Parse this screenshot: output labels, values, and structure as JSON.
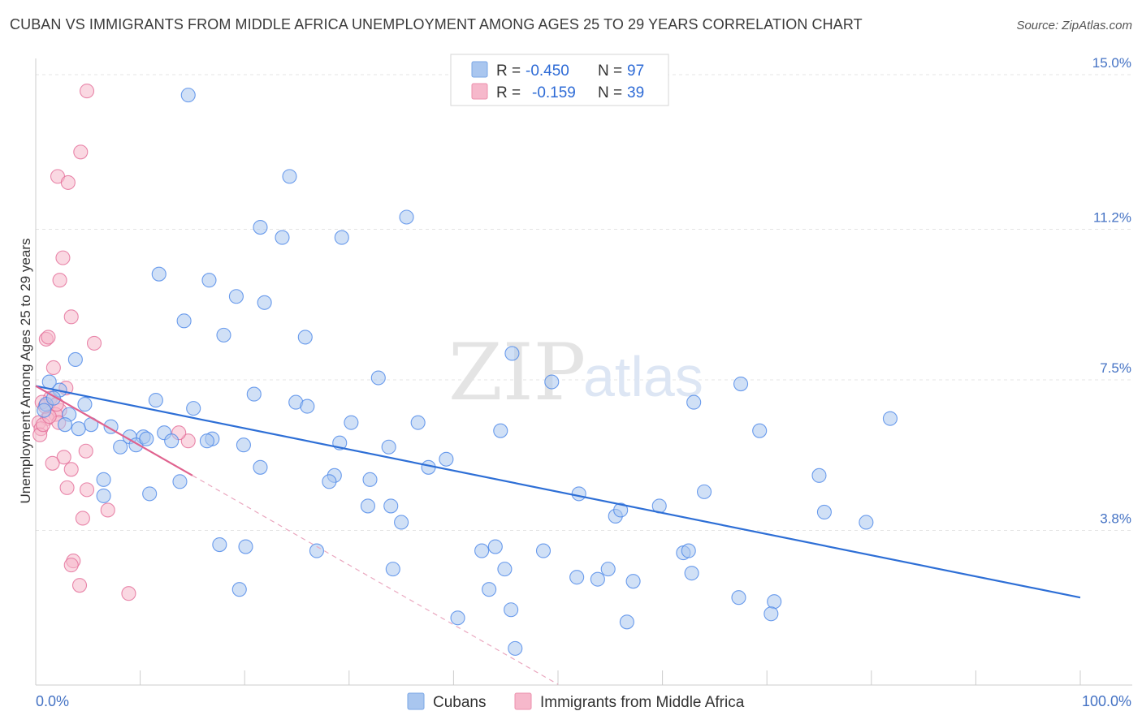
{
  "title": "CUBAN VS IMMIGRANTS FROM MIDDLE AFRICA UNEMPLOYMENT AMONG AGES 25 TO 29 YEARS CORRELATION CHART",
  "source": "Source: ZipAtlas.com",
  "watermark": {
    "zip": "ZIP",
    "atlas": "atlas"
  },
  "legend": {
    "r_label": "R =",
    "n_label": "N =",
    "rows": [
      {
        "r": "-0.450",
        "n": "97",
        "color": "#a9c6ef"
      },
      {
        "r": "-0.159",
        "n": "39",
        "color": "#f6b8cb"
      }
    ]
  },
  "bottom_legend": [
    "Cubans",
    "Immigrants from Middle Africa"
  ],
  "chart_data": {
    "type": "scatter",
    "title": "CUBAN VS IMMIGRANTS FROM MIDDLE AFRICA UNEMPLOYMENT AMONG AGES 25 TO 29 YEARS CORRELATION CHART",
    "xlabel": "",
    "ylabel": "Unemployment Among Ages 25 to 29 years",
    "xlim": [
      0,
      100
    ],
    "ylim": [
      0,
      15.4
    ],
    "x_tick_labels": [
      "0.0%",
      "100.0%"
    ],
    "y_ticks": [
      3.8,
      7.5,
      11.2,
      15.0
    ],
    "y_tick_labels": [
      "3.8%",
      "7.5%",
      "11.2%",
      "15.0%"
    ],
    "grid": true,
    "legend_position": "top-center",
    "series": [
      {
        "name": "Cubans",
        "color": "#4a86e8",
        "fill": "#a9c6ef",
        "r": -0.45,
        "n": 97,
        "trend": {
          "x0": 0,
          "y0": 7.35,
          "x1": 100,
          "y1": 2.15
        },
        "points": [
          [
            14.6,
            14.5
          ],
          [
            24.3,
            12.5
          ],
          [
            21.5,
            11.25
          ],
          [
            35.5,
            11.5
          ],
          [
            23.6,
            11.0
          ],
          [
            29.3,
            11.0
          ],
          [
            11.8,
            10.1
          ],
          [
            16.6,
            9.95
          ],
          [
            19.2,
            9.55
          ],
          [
            21.9,
            9.4
          ],
          [
            14.2,
            8.95
          ],
          [
            18.0,
            8.6
          ],
          [
            25.8,
            8.55
          ],
          [
            3.8,
            8.0
          ],
          [
            45.6,
            8.15
          ],
          [
            1.3,
            7.45
          ],
          [
            2.3,
            7.25
          ],
          [
            32.8,
            7.55
          ],
          [
            49.4,
            7.45
          ],
          [
            67.5,
            7.4
          ],
          [
            20.9,
            7.15
          ],
          [
            11.5,
            7.0
          ],
          [
            24.9,
            6.95
          ],
          [
            4.7,
            6.9
          ],
          [
            63.0,
            6.95
          ],
          [
            26.0,
            6.85
          ],
          [
            15.1,
            6.8
          ],
          [
            3.2,
            6.65
          ],
          [
            1.0,
            6.9
          ],
          [
            30.2,
            6.45
          ],
          [
            36.6,
            6.45
          ],
          [
            81.8,
            6.55
          ],
          [
            2.8,
            6.4
          ],
          [
            5.3,
            6.4
          ],
          [
            7.2,
            6.35
          ],
          [
            12.3,
            6.2
          ],
          [
            44.5,
            6.25
          ],
          [
            69.3,
            6.25
          ],
          [
            9.0,
            6.1
          ],
          [
            10.3,
            6.1
          ],
          [
            9.6,
            5.9
          ],
          [
            8.1,
            5.85
          ],
          [
            10.6,
            6.05
          ],
          [
            13.0,
            6.0
          ],
          [
            16.9,
            6.05
          ],
          [
            29.1,
            5.95
          ],
          [
            33.8,
            5.85
          ],
          [
            37.6,
            5.35
          ],
          [
            21.5,
            5.35
          ],
          [
            28.6,
            5.15
          ],
          [
            32.0,
            5.05
          ],
          [
            28.1,
            5.0
          ],
          [
            6.5,
            5.05
          ],
          [
            13.8,
            5.0
          ],
          [
            52.0,
            4.7
          ],
          [
            64.0,
            4.75
          ],
          [
            31.8,
            4.4
          ],
          [
            34.0,
            4.4
          ],
          [
            59.7,
            4.4
          ],
          [
            75.5,
            4.25
          ],
          [
            55.5,
            4.15
          ],
          [
            35.0,
            4.0
          ],
          [
            79.5,
            4.0
          ],
          [
            17.6,
            3.45
          ],
          [
            20.1,
            3.4
          ],
          [
            44.0,
            3.4
          ],
          [
            26.9,
            3.3
          ],
          [
            42.7,
            3.3
          ],
          [
            48.6,
            3.3
          ],
          [
            62.0,
            3.25
          ],
          [
            62.5,
            3.3
          ],
          [
            44.9,
            2.85
          ],
          [
            34.2,
            2.85
          ],
          [
            51.8,
            2.65
          ],
          [
            53.8,
            2.6
          ],
          [
            57.2,
            2.55
          ],
          [
            62.8,
            2.75
          ],
          [
            54.8,
            2.85
          ],
          [
            19.5,
            2.35
          ],
          [
            43.4,
            2.35
          ],
          [
            67.3,
            2.15
          ],
          [
            70.7,
            2.05
          ],
          [
            40.4,
            1.65
          ],
          [
            45.5,
            1.85
          ],
          [
            56.6,
            1.55
          ],
          [
            70.4,
            1.75
          ],
          [
            45.9,
            0.9
          ],
          [
            6.5,
            4.65
          ],
          [
            10.9,
            4.7
          ],
          [
            19.9,
            5.9
          ],
          [
            0.8,
            6.75
          ],
          [
            1.7,
            7.05
          ],
          [
            4.1,
            6.3
          ],
          [
            16.4,
            6.0
          ],
          [
            39.3,
            5.55
          ],
          [
            56.0,
            4.3
          ],
          [
            75.0,
            5.15
          ]
        ]
      },
      {
        "name": "Immigrants from Middle Africa",
        "color": "#e36b97",
        "fill": "#f6b8cb",
        "r": -0.159,
        "n": 39,
        "trend": {
          "x0": 0,
          "y0": 7.35,
          "x1": 15.0,
          "y1": 5.15,
          "dash_to_x": 50.0
        },
        "points": [
          [
            4.9,
            14.6
          ],
          [
            4.3,
            13.1
          ],
          [
            2.1,
            12.5
          ],
          [
            3.1,
            12.35
          ],
          [
            2.6,
            10.5
          ],
          [
            2.3,
            9.95
          ],
          [
            3.4,
            9.05
          ],
          [
            1.0,
            8.5
          ],
          [
            1.2,
            8.55
          ],
          [
            5.6,
            8.4
          ],
          [
            1.7,
            7.8
          ],
          [
            2.9,
            7.3
          ],
          [
            1.4,
            7.05
          ],
          [
            0.6,
            6.95
          ],
          [
            2.3,
            6.75
          ],
          [
            1.9,
            6.65
          ],
          [
            1.1,
            6.55
          ],
          [
            0.3,
            6.45
          ],
          [
            0.5,
            6.3
          ],
          [
            0.4,
            6.15
          ],
          [
            2.2,
            6.45
          ],
          [
            0.7,
            6.4
          ],
          [
            4.8,
            5.75
          ],
          [
            2.7,
            5.6
          ],
          [
            1.6,
            5.45
          ],
          [
            3.4,
            5.3
          ],
          [
            3.0,
            4.85
          ],
          [
            4.9,
            4.8
          ],
          [
            6.9,
            4.3
          ],
          [
            4.5,
            4.1
          ],
          [
            3.6,
            3.05
          ],
          [
            3.4,
            2.95
          ],
          [
            4.2,
            2.45
          ],
          [
            8.9,
            2.25
          ],
          [
            14.6,
            6.0
          ],
          [
            13.7,
            6.2
          ],
          [
            1.3,
            6.6
          ],
          [
            2.0,
            6.9
          ],
          [
            0.9,
            6.85
          ]
        ]
      }
    ]
  }
}
